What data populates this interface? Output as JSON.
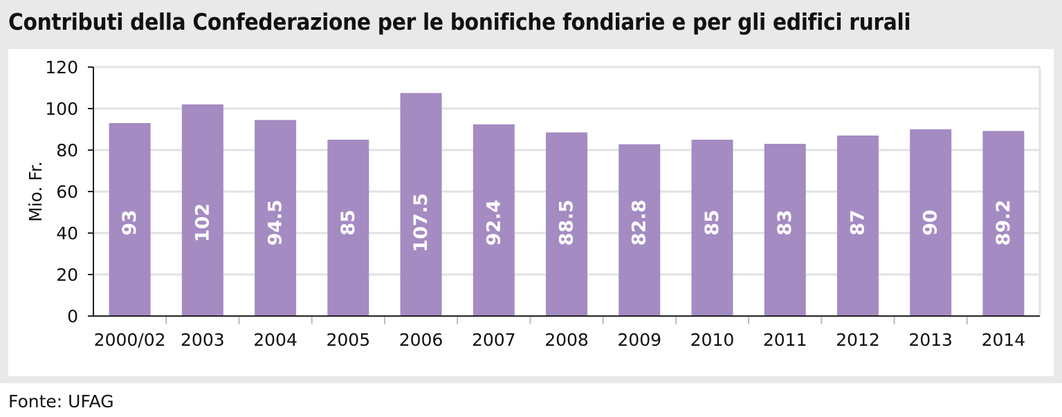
{
  "chart_data": {
    "type": "bar",
    "title": "Contributi della Confederazione per le bonifiche fondiarie e per gli edifici rurali",
    "xlabel": "",
    "ylabel": "Mio. Fr.",
    "ylim": [
      0,
      120
    ],
    "yticks": [
      0,
      20,
      40,
      60,
      80,
      100,
      120
    ],
    "grid": true,
    "categories": [
      "2000/02",
      "2003",
      "2004",
      "2005",
      "2006",
      "2007",
      "2008",
      "2009",
      "2010",
      "2011",
      "2012",
      "2013",
      "2014"
    ],
    "values": [
      93,
      102,
      94.5,
      85,
      107.5,
      92.4,
      88.5,
      82.8,
      85,
      83,
      87,
      90,
      89.2
    ],
    "value_labels": [
      "93",
      "102",
      "94.5",
      "85",
      "107.5",
      "92.4",
      "88.5",
      "82.8",
      "85",
      "83",
      "87",
      "90",
      "89.2"
    ],
    "colors": {
      "bar": "#a48bc2",
      "grid": "#e2e2e2",
      "value_label": "#ffffff",
      "text": "#111111"
    }
  },
  "footer": {
    "source": "Fonte: UFAG"
  }
}
